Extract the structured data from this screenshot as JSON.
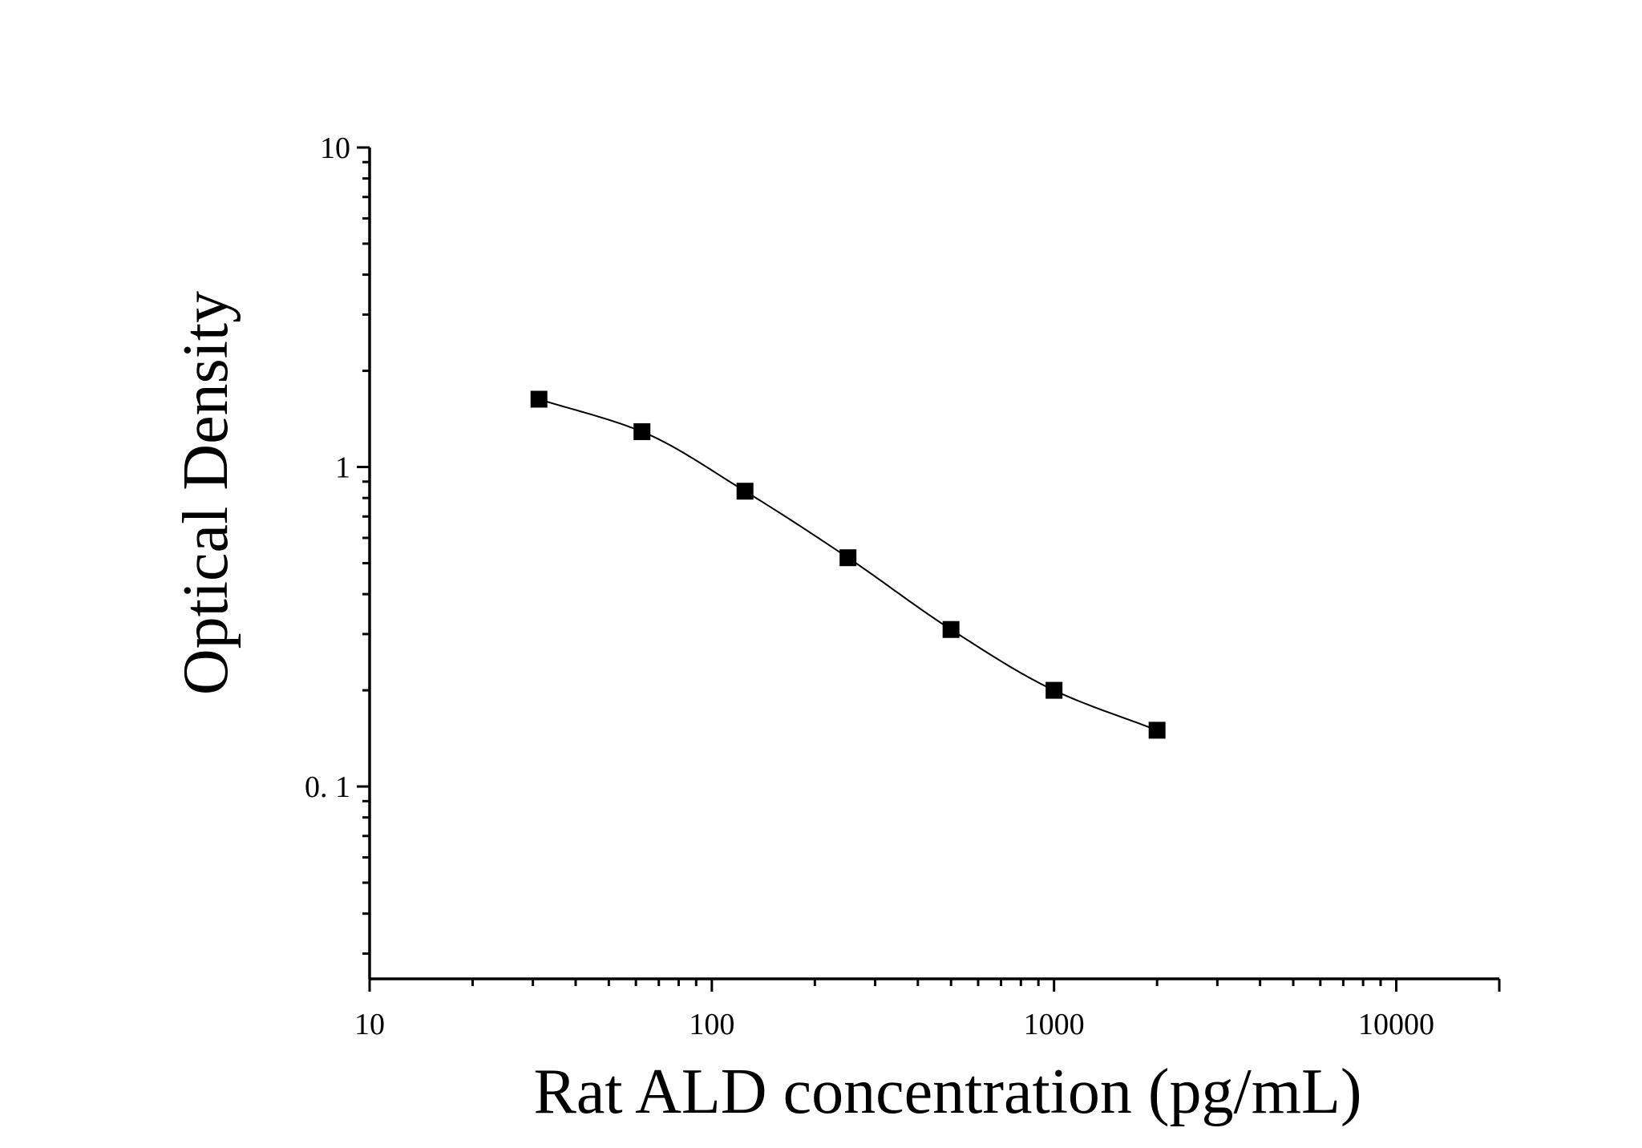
{
  "chart_data": {
    "type": "scatter",
    "title": "",
    "xlabel": "Rat ALD concentration (pg/mL)",
    "ylabel": "Optical Density",
    "x_scale": "log",
    "y_scale": "log",
    "xlim": [
      10,
      20000
    ],
    "ylim": [
      0.025,
      10
    ],
    "x_ticks": [
      10,
      100,
      1000,
      10000
    ],
    "x_tick_labels": [
      "10",
      "100",
      "1000",
      "10000"
    ],
    "y_ticks": [
      0.1,
      1,
      10
    ],
    "y_tick_labels": [
      "0. 1",
      "1",
      "10"
    ],
    "grid": false,
    "legend": false,
    "series": [
      {
        "marker": "square",
        "color": "#000000",
        "x": [
          31.25,
          62.5,
          125,
          250,
          500,
          1000,
          2000
        ],
        "y": [
          1.63,
          1.29,
          0.84,
          0.52,
          0.31,
          0.2,
          0.15
        ]
      }
    ],
    "fit_curve": {
      "type": "4PL",
      "color": "#000000",
      "domain": [
        31.25,
        2000
      ]
    }
  }
}
